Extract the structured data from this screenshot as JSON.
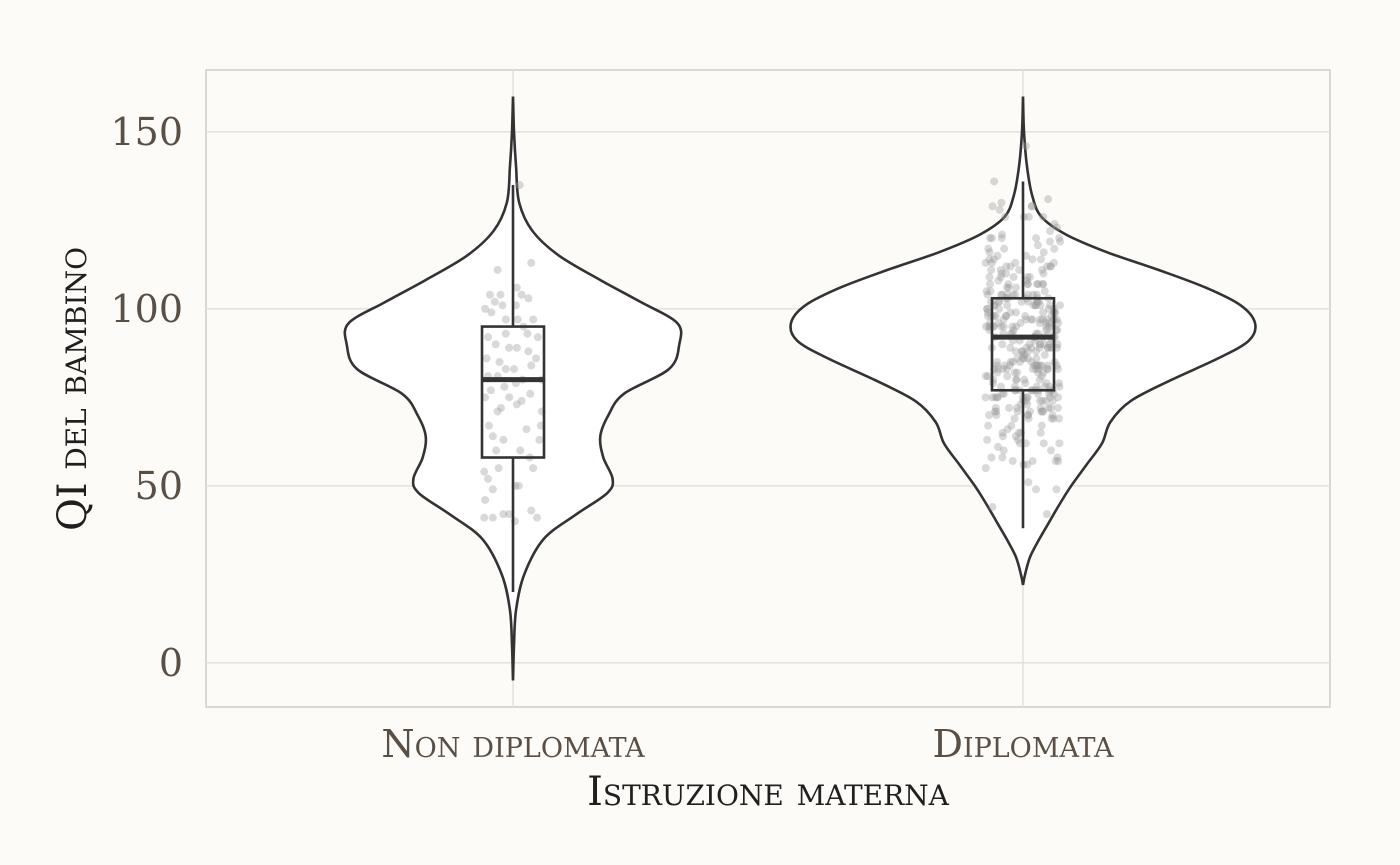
{
  "chart_data": {
    "type": "violin",
    "xlabel": "Istruzione materna",
    "ylabel": "QI del bambino",
    "categories": [
      "Non diplomata",
      "Diplomata"
    ],
    "ylim": [
      -12.5,
      167.5
    ],
    "yticks": [
      0,
      50,
      100,
      150
    ],
    "grid": true,
    "groups": [
      {
        "name": "Non diplomata",
        "box": {
          "whisker_low": 20,
          "q1": 58,
          "median": 80,
          "q3": 95,
          "whisker_high": 135
        },
        "range": [
          -5,
          160
        ],
        "density": [
          [
            -5,
            0.0
          ],
          [
            5,
            0.01
          ],
          [
            15,
            0.03
          ],
          [
            25,
            0.11
          ],
          [
            35,
            0.3
          ],
          [
            42,
            0.62
          ],
          [
            48,
            0.92
          ],
          [
            52,
            0.97
          ],
          [
            58,
            0.88
          ],
          [
            64,
            0.85
          ],
          [
            70,
            0.93
          ],
          [
            76,
            1.08
          ],
          [
            83,
            1.52
          ],
          [
            90,
            1.62
          ],
          [
            96,
            1.6
          ],
          [
            102,
            1.24
          ],
          [
            108,
            0.86
          ],
          [
            115,
            0.45
          ],
          [
            122,
            0.19
          ],
          [
            130,
            0.06
          ],
          [
            140,
            0.03
          ],
          [
            150,
            0.01
          ],
          [
            160,
            0.0
          ]
        ],
        "points": [
          [
            0.14,
            135
          ],
          [
            -0.32,
            111
          ],
          [
            0.38,
            113
          ],
          [
            -0.48,
            104
          ],
          [
            -0.38,
            102
          ],
          [
            -0.26,
            104
          ],
          [
            -0.22,
            101
          ],
          [
            0.08,
            106
          ],
          [
            0.18,
            104
          ],
          [
            0.32,
            103
          ],
          [
            -0.58,
            100
          ],
          [
            -0.45,
            99
          ],
          [
            0.06,
            101
          ],
          [
            -0.15,
            97
          ],
          [
            0.1,
            97
          ],
          [
            0.22,
            95
          ],
          [
            0.42,
            97
          ],
          [
            0.3,
            93
          ],
          [
            -0.52,
            92
          ],
          [
            -0.36,
            90
          ],
          [
            0.52,
            92
          ],
          [
            -0.08,
            89
          ],
          [
            0.08,
            89
          ],
          [
            -0.55,
            86
          ],
          [
            -0.28,
            85
          ],
          [
            0.32,
            88
          ],
          [
            0.48,
            86
          ],
          [
            -0.15,
            83
          ],
          [
            -0.52,
            81
          ],
          [
            -0.32,
            81
          ],
          [
            0.38,
            84
          ],
          [
            -0.46,
            77
          ],
          [
            -0.18,
            78
          ],
          [
            0.06,
            79
          ],
          [
            0.2,
            80
          ],
          [
            0.6,
            80
          ],
          [
            -0.58,
            75
          ],
          [
            -0.08,
            75
          ],
          [
            0.18,
            74
          ],
          [
            0.36,
            76
          ],
          [
            -0.32,
            71
          ],
          [
            0.08,
            73
          ],
          [
            0.6,
            71
          ],
          [
            -0.5,
            67
          ],
          [
            0.58,
            67
          ],
          [
            -0.42,
            64
          ],
          [
            -0.2,
            63
          ],
          [
            0.55,
            63
          ],
          [
            -0.35,
            60
          ],
          [
            0.15,
            60
          ],
          [
            0.35,
            58
          ],
          [
            -0.6,
            54
          ],
          [
            -0.3,
            55
          ],
          [
            0.42,
            55
          ],
          [
            -0.52,
            52
          ],
          [
            0.05,
            50
          ],
          [
            -0.42,
            49
          ],
          [
            0.12,
            50
          ],
          [
            -0.58,
            46
          ],
          [
            0.38,
            43
          ],
          [
            -0.6,
            41
          ],
          [
            -0.42,
            41
          ],
          [
            -0.08,
            42
          ],
          [
            0.04,
            40
          ],
          [
            -0.2,
            42
          ],
          [
            0.5,
            41
          ],
          [
            -0.15,
            93
          ],
          [
            0.02,
            83
          ],
          [
            -0.25,
            72
          ],
          [
            0.28,
            66
          ]
        ]
      },
      {
        "name": "Diplomata",
        "box": {
          "whisker_low": 38,
          "q1": 77,
          "median": 92,
          "q3": 103,
          "whisker_high": 136
        },
        "range": [
          22,
          160
        ],
        "density": [
          [
            22,
            0.0
          ],
          [
            25,
            0.02
          ],
          [
            30,
            0.07
          ],
          [
            35,
            0.16
          ],
          [
            40,
            0.26
          ],
          [
            45,
            0.36
          ],
          [
            50,
            0.47
          ],
          [
            56,
            0.62
          ],
          [
            62,
            0.77
          ],
          [
            68,
            0.85
          ],
          [
            74,
            1.05
          ],
          [
            80,
            1.45
          ],
          [
            86,
            1.9
          ],
          [
            91,
            2.2
          ],
          [
            96,
            2.26
          ],
          [
            101,
            2.12
          ],
          [
            106,
            1.78
          ],
          [
            111,
            1.32
          ],
          [
            116,
            0.82
          ],
          [
            121,
            0.42
          ],
          [
            126,
            0.18
          ],
          [
            132,
            0.09
          ],
          [
            140,
            0.04
          ],
          [
            150,
            0.01
          ],
          [
            160,
            0.0
          ]
        ]
      }
    ]
  }
}
